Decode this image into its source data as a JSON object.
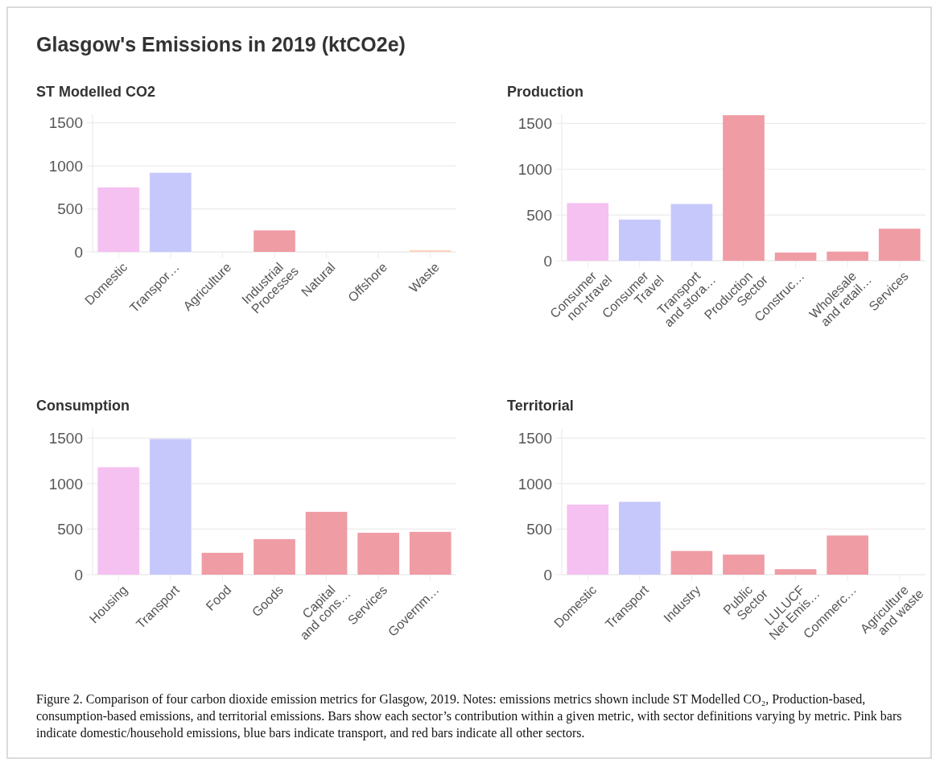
{
  "chart_data": [
    {
      "type": "bar",
      "title": "ST Modelled CO2",
      "annotations": [
        "Glasgow's Emissions in 2019 (ktCO2e)"
      ],
      "categories": [
        "Domestic",
        "Transpor…",
        "Agriculture",
        "Industrial\nProcesses",
        "Natural",
        "Offshore",
        "Waste"
      ],
      "values": [
        750,
        920,
        0,
        250,
        0,
        0,
        20
      ],
      "colors": [
        "#f5c1f1",
        "#c6c8fc",
        "#ef9ca4",
        "#ef9ca4",
        "#ef9ca4",
        "#ef9ca4",
        "#f9d5bd"
      ],
      "ylim": [
        0,
        1600
      ],
      "yticks": [
        0,
        500,
        1000,
        1500
      ],
      "grid": "y"
    },
    {
      "type": "bar",
      "title": "Production",
      "categories": [
        "Consumer\nnon-travel",
        "Consumer\nTravel",
        "Transport\nand stora…",
        "Production\nSector",
        "Construc…",
        "Wholesale\nand retail…",
        "Services"
      ],
      "values": [
        630,
        450,
        620,
        1590,
        90,
        100,
        350
      ],
      "colors": [
        "#f5c1f1",
        "#c6c8fc",
        "#c6c8fc",
        "#ef9ca4",
        "#ef9ca4",
        "#ef9ca4",
        "#ef9ca4"
      ],
      "ylim": [
        0,
        1600
      ],
      "yticks": [
        0,
        500,
        1000,
        1500
      ],
      "grid": "y"
    },
    {
      "type": "bar",
      "title": "Consumption",
      "categories": [
        "Housing",
        "Transport",
        "Food",
        "Goods",
        "Capital\nand cons…",
        "Services",
        "Governm…"
      ],
      "values": [
        1180,
        1490,
        240,
        390,
        690,
        460,
        470
      ],
      "colors": [
        "#f5c1f1",
        "#c6c8fc",
        "#ef9ca4",
        "#ef9ca4",
        "#ef9ca4",
        "#ef9ca4",
        "#ef9ca4"
      ],
      "ylim": [
        0,
        1600
      ],
      "yticks": [
        0,
        500,
        1000,
        1500
      ],
      "grid": "y"
    },
    {
      "type": "bar",
      "title": "Territorial",
      "annotations": [
        "Figure 2. Comparison of four carbon dioxide emission metrics for Glasgow, 2019. Notes: emissions metrics shown include ST Modelled CO₂, Production-based, consumption-based emissions, and territorial emissions. Bars show each sector’s contribution within a given metric, with sector definitions varying by metric. Pink bars indicate domestic/household emissions, blue bars indicate transport, and red bars indicate all other sectors."
      ],
      "categories": [
        "Domestic",
        "Transport",
        "Industry",
        "Public\nSector",
        "LULUCF\nNet Emis…",
        "Commerc…",
        "Agriculture\nand waste"
      ],
      "values": [
        770,
        800,
        260,
        220,
        60,
        430,
        0
      ],
      "colors": [
        "#f5c1f1",
        "#c6c8fc",
        "#ef9ca4",
        "#ef9ca4",
        "#ef9ca4",
        "#ef9ca4",
        "#ef9ca4"
      ],
      "ylim": [
        0,
        1600
      ],
      "yticks": [
        0,
        500,
        1000,
        1500
      ],
      "grid": "y"
    }
  ]
}
